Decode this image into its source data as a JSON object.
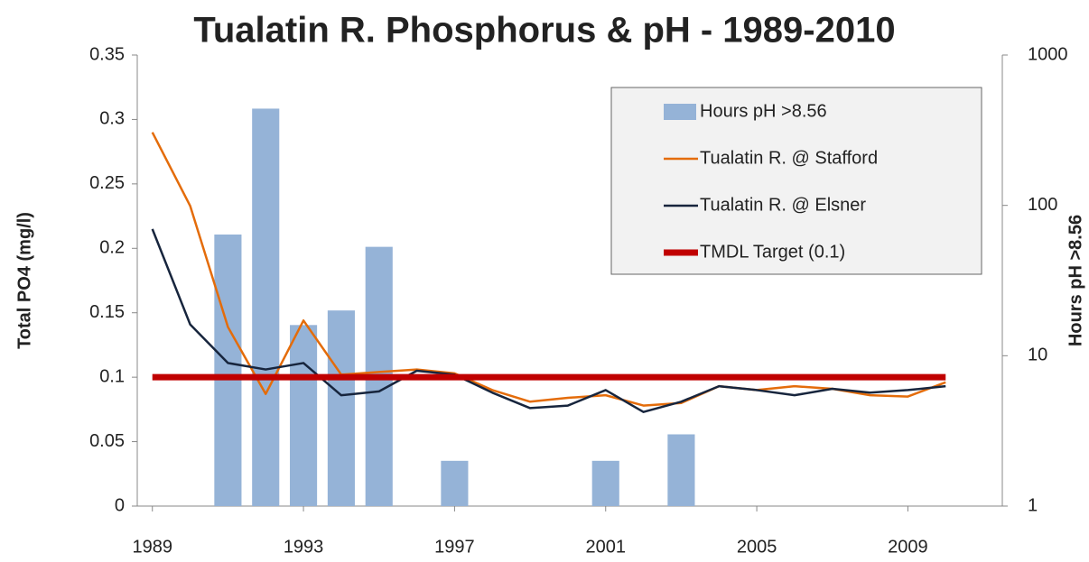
{
  "chart_data": {
    "type": "combo",
    "title": "Tualatin R. Phosphorus & pH - 1989-2010",
    "y_label": "Total PO4 (mg/l)",
    "y2_label": "Hours pH >8.56",
    "x": [
      1989,
      1990,
      1991,
      1992,
      1993,
      1994,
      1995,
      1996,
      1997,
      1998,
      1999,
      2000,
      2001,
      2002,
      2003,
      2004,
      2005,
      2006,
      2007,
      2008,
      2009,
      2010
    ],
    "xlim": [
      1988.6,
      2011.5
    ],
    "xticks": [
      1989,
      1993,
      1997,
      2001,
      2005,
      2009
    ],
    "ylim": [
      0,
      0.35
    ],
    "yticks": [
      0,
      0.05,
      0.1,
      0.15,
      0.2,
      0.25,
      0.3,
      0.35
    ],
    "y2lim": [
      1,
      1000
    ],
    "y2ticks": [
      1,
      10,
      100,
      1000
    ],
    "y2log": true,
    "grid": false,
    "legend": "upper right",
    "series": [
      {
        "name": "Hours pH >8.56",
        "type": "bar",
        "axis": "y2",
        "color": "#95b3d7",
        "values": [
          null,
          null,
          64,
          440,
          16,
          20,
          53,
          null,
          2,
          null,
          null,
          null,
          2,
          null,
          3,
          null,
          null,
          null,
          null,
          null,
          null,
          null
        ]
      },
      {
        "name": "Tualatin R. @ Stafford",
        "type": "line",
        "color": "#e46c0a",
        "values": [
          0.29,
          0.233,
          0.139,
          0.087,
          0.144,
          0.102,
          0.104,
          0.106,
          0.103,
          0.09,
          0.081,
          0.084,
          0.086,
          0.078,
          0.08,
          0.093,
          0.09,
          0.093,
          0.091,
          0.086,
          0.085,
          0.096
        ]
      },
      {
        "name": "Tualatin R. @ Elsner",
        "type": "line",
        "color": "#17253d",
        "values": [
          0.215,
          0.141,
          0.111,
          0.106,
          0.111,
          0.086,
          0.089,
          0.105,
          0.102,
          0.088,
          0.076,
          0.078,
          0.09,
          0.073,
          0.081,
          0.093,
          0.09,
          0.086,
          0.091,
          0.088,
          0.09,
          0.093
        ]
      },
      {
        "name": "TMDL Target (0.1)",
        "type": "line",
        "color": "#c00000",
        "width": 7,
        "x": [
          1989,
          2010
        ],
        "values": [
          0.1,
          0.1
        ]
      }
    ]
  }
}
